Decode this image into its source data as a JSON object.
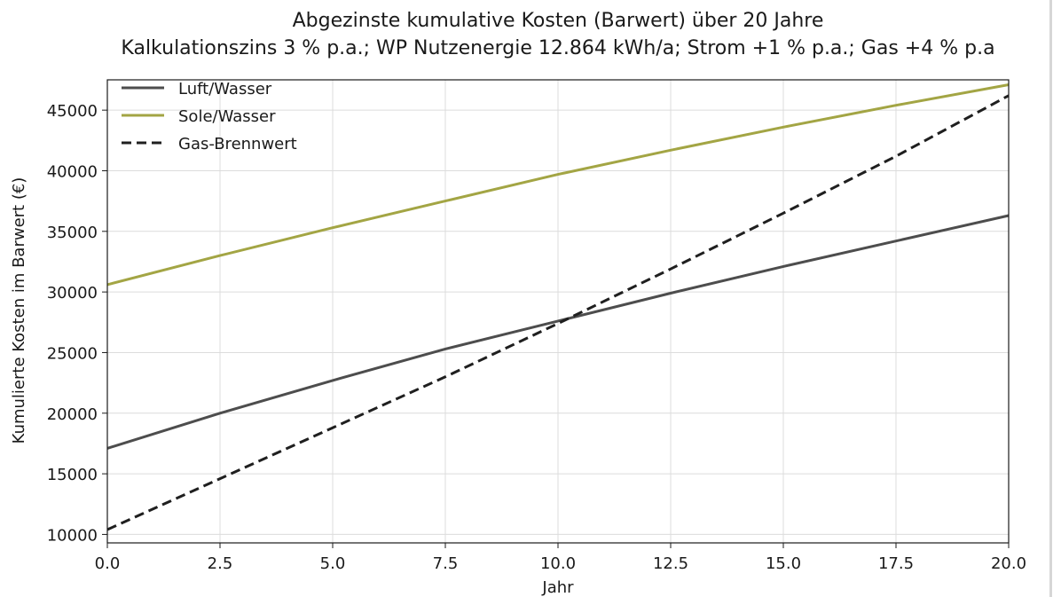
{
  "chart_data": {
    "type": "line",
    "title": "Abgezinste kumulative Kosten (Barwert) über 20 Jahre",
    "subtitle": "Kalkulationszins 3 % p.a.; WP Nutzenergie 12.864 kWh/a; Strom +1 % p.a.; Gas +4 % p.a",
    "xlabel": "Jahr",
    "ylabel": "Kumulierte Kosten im Barwert (€)",
    "xlim": [
      0,
      20
    ],
    "ylim": [
      9300,
      47500
    ],
    "x_ticks": [
      "0.0",
      "2.5",
      "5.0",
      "7.5",
      "10.0",
      "12.5",
      "15.0",
      "17.5",
      "20.0"
    ],
    "y_ticks": [
      "10000",
      "15000",
      "20000",
      "25000",
      "30000",
      "35000",
      "40000",
      "45000"
    ],
    "grid": true,
    "legend_position": "upper-left",
    "x": [
      0,
      2.5,
      5,
      7.5,
      10,
      12.5,
      15,
      17.5,
      20
    ],
    "series": [
      {
        "name": "Luft/Wasser",
        "color": "#4d4d4d",
        "dash": "solid",
        "values": [
          17100,
          20000,
          22700,
          25300,
          27600,
          29900,
          32100,
          34200,
          36300
        ]
      },
      {
        "name": "Sole/Wasser",
        "color": "#a3a544",
        "dash": "solid",
        "values": [
          30600,
          33000,
          35300,
          37500,
          39700,
          41700,
          43600,
          45400,
          47100
        ]
      },
      {
        "name": "Gas-Brennwert",
        "color": "#1f1f1f",
        "dash": "dashed",
        "values": [
          10400,
          14600,
          18800,
          23000,
          27400,
          31900,
          36500,
          41200,
          46200
        ]
      }
    ]
  }
}
